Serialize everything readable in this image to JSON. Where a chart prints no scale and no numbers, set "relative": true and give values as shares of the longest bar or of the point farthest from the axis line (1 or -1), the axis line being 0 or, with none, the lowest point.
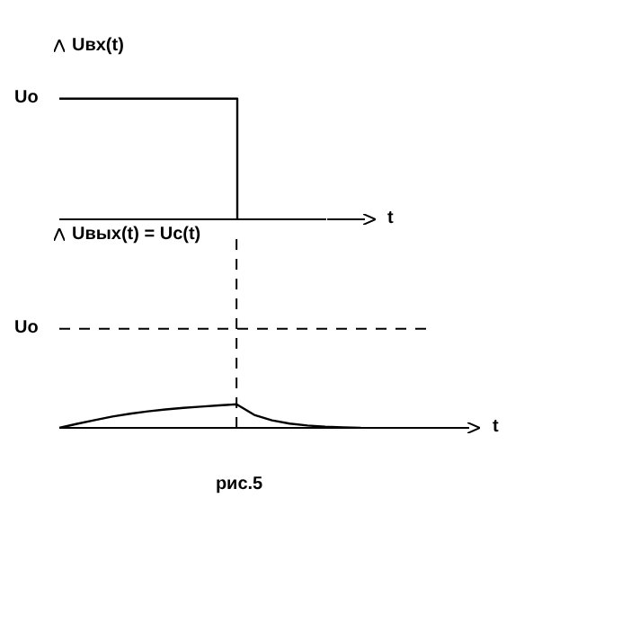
{
  "chart_data": [
    {
      "type": "step",
      "ylabel": "Uвх(t)",
      "xlabel": "t",
      "relative": true,
      "categories": [
        null,
        null,
        null,
        null,
        null,
        null,
        null,
        null,
        null,
        null,
        null,
        null,
        null,
        null,
        null,
        null
      ],
      "series": [
        {
          "color": "#000000",
          "values": [
            1,
            1,
            1,
            1,
            1,
            1,
            1,
            1,
            1,
            1,
            0,
            null,
            null,
            null,
            null,
            null
          ]
        }
      ],
      "annotations": [
        "Uo"
      ]
    },
    {
      "type": "line",
      "ylabel": "Uвых(t) = Uc(t)",
      "xlabel": "t",
      "relative": true,
      "categories": [
        null,
        null,
        null,
        null,
        null,
        null,
        null,
        null,
        null,
        null,
        null,
        null,
        null,
        null,
        null,
        null,
        null,
        null,
        null,
        null,
        null,
        null
      ],
      "series": [
        {
          "color": "#000000",
          "values": [
            0,
            0.17,
            0.33,
            0.48,
            0.6,
            0.7,
            0.78,
            0.85,
            0.9,
            0.95,
            1,
            0.55,
            0.32,
            0.18,
            0.1,
            0.05,
            0.02,
            0,
            null,
            null,
            null,
            null
          ]
        }
      ],
      "ref_lines": [
        {
          "axis": "y",
          "value": 4.2,
          "label": "Uo",
          "line_style": "dashed"
        }
      ],
      "annotations": [
        "рис.5"
      ]
    }
  ]
}
